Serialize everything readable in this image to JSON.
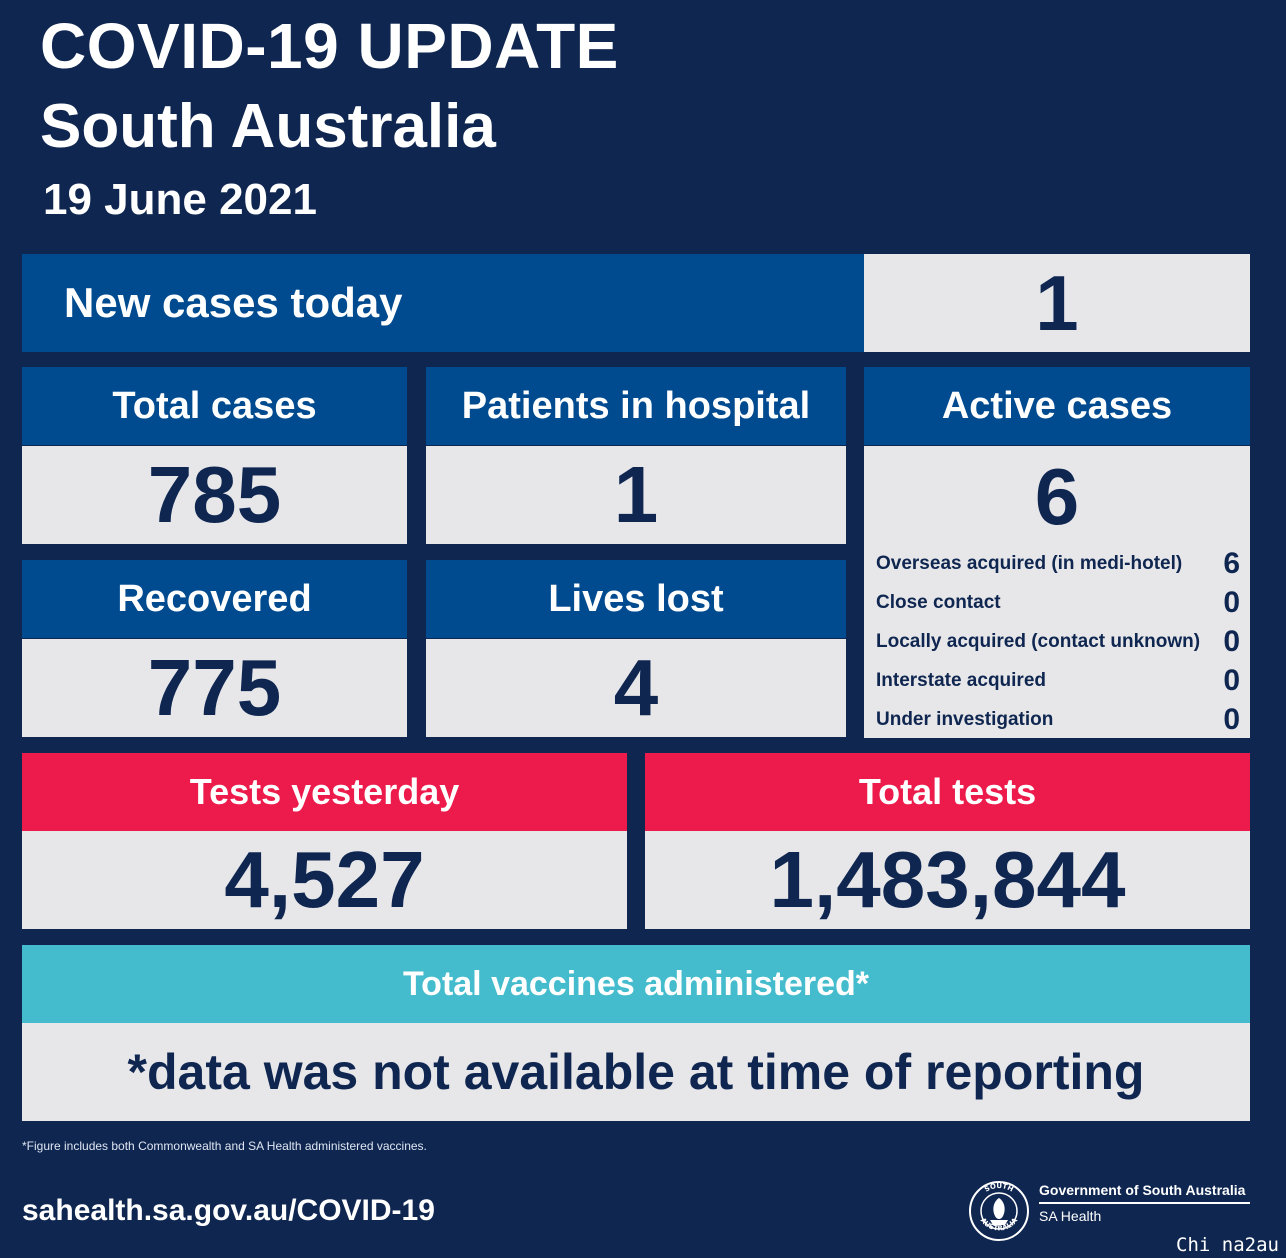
{
  "header": {
    "title": "COVID-19 UPDATE",
    "region": "South Australia",
    "date": "19 June 2021"
  },
  "new_cases": {
    "label": "New cases today",
    "value": "1"
  },
  "total_cases": {
    "label": "Total cases",
    "value": "785"
  },
  "hospital": {
    "label": "Patients in hospital",
    "value": "1"
  },
  "active": {
    "label": "Active cases",
    "value": "6",
    "breakdown": [
      {
        "label": "Overseas acquired (in medi-hotel)",
        "value": "6"
      },
      {
        "label": "Close contact",
        "value": "0"
      },
      {
        "label": "Locally acquired (contact unknown)",
        "value": "0"
      },
      {
        "label": "Interstate acquired",
        "value": "0"
      },
      {
        "label": "Under investigation",
        "value": "0"
      }
    ]
  },
  "recovered": {
    "label": "Recovered",
    "value": "775"
  },
  "lives_lost": {
    "label": "Lives lost",
    "value": "4"
  },
  "tests_yesterday": {
    "label": "Tests yesterday",
    "value": "4,527"
  },
  "total_tests": {
    "label": "Total tests",
    "value": "1,483,844"
  },
  "vaccines": {
    "label": "Total vaccines administered*",
    "value": "*data was not available at time of reporting"
  },
  "footnote": "*Figure includes both Commonwealth and SA Health administered vaccines.",
  "website": "sahealth.sa.gov.au/COVID-19",
  "government": {
    "name": "Government of South Australia",
    "department": "SA Health",
    "seal_text": "SOUTH AUSTRALIA"
  },
  "watermark": "Chi na2au",
  "colors": {
    "background": "#0f2650",
    "header_blue": "#004a8f",
    "header_red": "#ec1b4b",
    "header_teal": "#45bccd",
    "value_panel": "#e7e7ea",
    "value_text": "#0f2650"
  }
}
